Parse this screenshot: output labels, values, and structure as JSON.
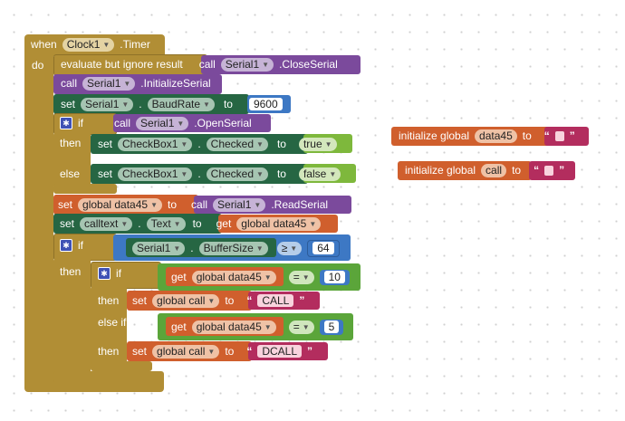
{
  "colors": {
    "event": "#b18e35",
    "component_method": "#7b4a9c",
    "component_setter": "#266643",
    "variable": "#d05f2d",
    "math": "#3d78c4",
    "logic": "#5ba53a",
    "text": "#b32d5e"
  },
  "icons": {
    "mutator": "gear-icon",
    "dropdown": "chevron-down-icon"
  },
  "event": {
    "when": "when",
    "component": "Clock1",
    "event_name": ".Timer",
    "do": "do"
  },
  "evaluate": {
    "label": "evaluate but ignore result",
    "call": "call",
    "component": "Serial1",
    "method": ".CloseSerial"
  },
  "init_serial": {
    "call": "call",
    "component": "Serial1",
    "method": ".InitializeSerial"
  },
  "set_baud": {
    "set": "set",
    "component": "Serial1",
    "dot": ".",
    "property": "BaudRate",
    "to": "to",
    "value": "9600"
  },
  "if1": {
    "if": "if",
    "call": "call",
    "component": "Serial1",
    "method": ".OpenSerial",
    "then": "then",
    "else": "else",
    "then_set": {
      "set": "set",
      "component": "CheckBox1",
      "dot": ".",
      "property": "Checked",
      "to": "to",
      "value": "true"
    },
    "else_set": {
      "set": "set",
      "component": "CheckBox1",
      "dot": ".",
      "property": "Checked",
      "to": "to",
      "value": "false"
    }
  },
  "set_data45": {
    "set": "set",
    "var": "global data45",
    "to": "to",
    "call": "call",
    "component": "Serial1",
    "method": ".ReadSerial"
  },
  "set_calltext": {
    "set": "set",
    "component": "calltext",
    "dot": ".",
    "property": "Text",
    "to": "to",
    "get": "get",
    "var": "global data45"
  },
  "if2": {
    "if": "if",
    "component": "Serial1",
    "dot": ".",
    "property": "BufferSize",
    "op": "≥",
    "value": "64",
    "then": "then"
  },
  "if3": {
    "if": "if",
    "then": "then",
    "elseif": "else if",
    "then2": "then",
    "cond1": {
      "get": "get",
      "var": "global data45",
      "op": "=",
      "value": "10"
    },
    "set1": {
      "set": "set",
      "var": "global call",
      "to": "to",
      "value": "CALL"
    },
    "cond2": {
      "get": "get",
      "var": "global data45",
      "op": "=",
      "value": "5"
    },
    "set2": {
      "set": "set",
      "var": "global call",
      "to": "to",
      "value": "DCALL"
    }
  },
  "globals": [
    {
      "label": "initialize global",
      "name": "data45",
      "to": "to"
    },
    {
      "label": "initialize global",
      "name": "call",
      "to": "to"
    }
  ]
}
